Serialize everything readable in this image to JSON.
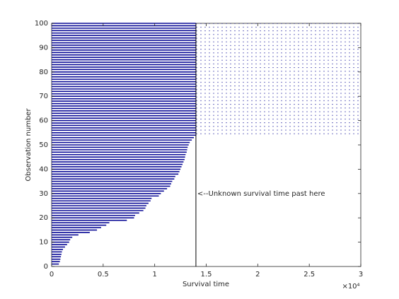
{
  "chart_data": {
    "type": "survival-lines",
    "xlabel": "Survival time",
    "ylabel": "Observation number",
    "annotation": "<--Unknown survival time past here",
    "censor_line": 14000,
    "x_exponent_label": "×10⁴",
    "color": "#0a0a96",
    "xlim": [
      0,
      30000
    ],
    "ylim": [
      0,
      100
    ],
    "xticks": [
      {
        "value": 0,
        "label": "0"
      },
      {
        "value": 5000,
        "label": "0.5"
      },
      {
        "value": 10000,
        "label": "1"
      },
      {
        "value": 15000,
        "label": "1.5"
      },
      {
        "value": 20000,
        "label": "2"
      },
      {
        "value": 25000,
        "label": "2.5"
      },
      {
        "value": 30000,
        "label": "3"
      }
    ],
    "yticks": [
      0,
      10,
      20,
      30,
      40,
      50,
      60,
      70,
      80,
      90,
      100
    ],
    "observations": [
      1,
      2,
      3,
      4,
      5,
      6,
      7,
      8,
      9,
      10,
      11,
      12,
      13,
      14,
      15,
      16,
      17,
      18,
      19,
      20,
      21,
      22,
      23,
      24,
      25,
      26,
      27,
      28,
      29,
      30,
      31,
      32,
      33,
      34,
      35,
      36,
      37,
      38,
      39,
      40,
      41,
      42,
      43,
      44,
      45,
      46,
      47,
      48,
      49,
      50,
      51,
      52,
      53,
      54,
      55,
      56,
      57,
      58,
      59,
      60,
      61,
      62,
      63,
      64,
      65,
      66,
      67,
      68,
      69,
      70,
      71,
      72,
      73,
      74,
      75,
      76,
      77,
      78,
      79,
      80,
      81,
      82,
      83,
      84,
      85,
      86,
      87,
      88,
      89,
      90,
      91,
      92,
      93,
      94,
      95,
      96,
      97,
      98,
      99,
      100
    ],
    "values": [
      700,
      800,
      850,
      900,
      950,
      1000,
      1100,
      1300,
      1500,
      1700,
      1800,
      2000,
      2600,
      3700,
      4400,
      4800,
      5300,
      5600,
      7300,
      8000,
      8100,
      8500,
      8900,
      9100,
      9200,
      9400,
      9600,
      9700,
      10400,
      10600,
      10900,
      11200,
      11500,
      11600,
      11700,
      11900,
      12000,
      12300,
      12400,
      12500,
      12600,
      12700,
      12800,
      12900,
      12950,
      13000,
      13100,
      13150,
      13200,
      13300,
      13400,
      13600,
      13800,
      14000,
      14000,
      14000,
      14000,
      14000,
      14000,
      14000,
      14000,
      14000,
      14000,
      14000,
      14000,
      14000,
      14000,
      14000,
      14000,
      14000,
      14000,
      14000,
      14000,
      14000,
      14000,
      14000,
      14000,
      14000,
      14000,
      14000,
      14000,
      14000,
      14000,
      14000,
      14000,
      14000,
      14000,
      14000,
      14000,
      14000,
      14000,
      14000,
      14000,
      14000,
      14000,
      14000,
      14000,
      14000,
      14000,
      14000
    ]
  }
}
